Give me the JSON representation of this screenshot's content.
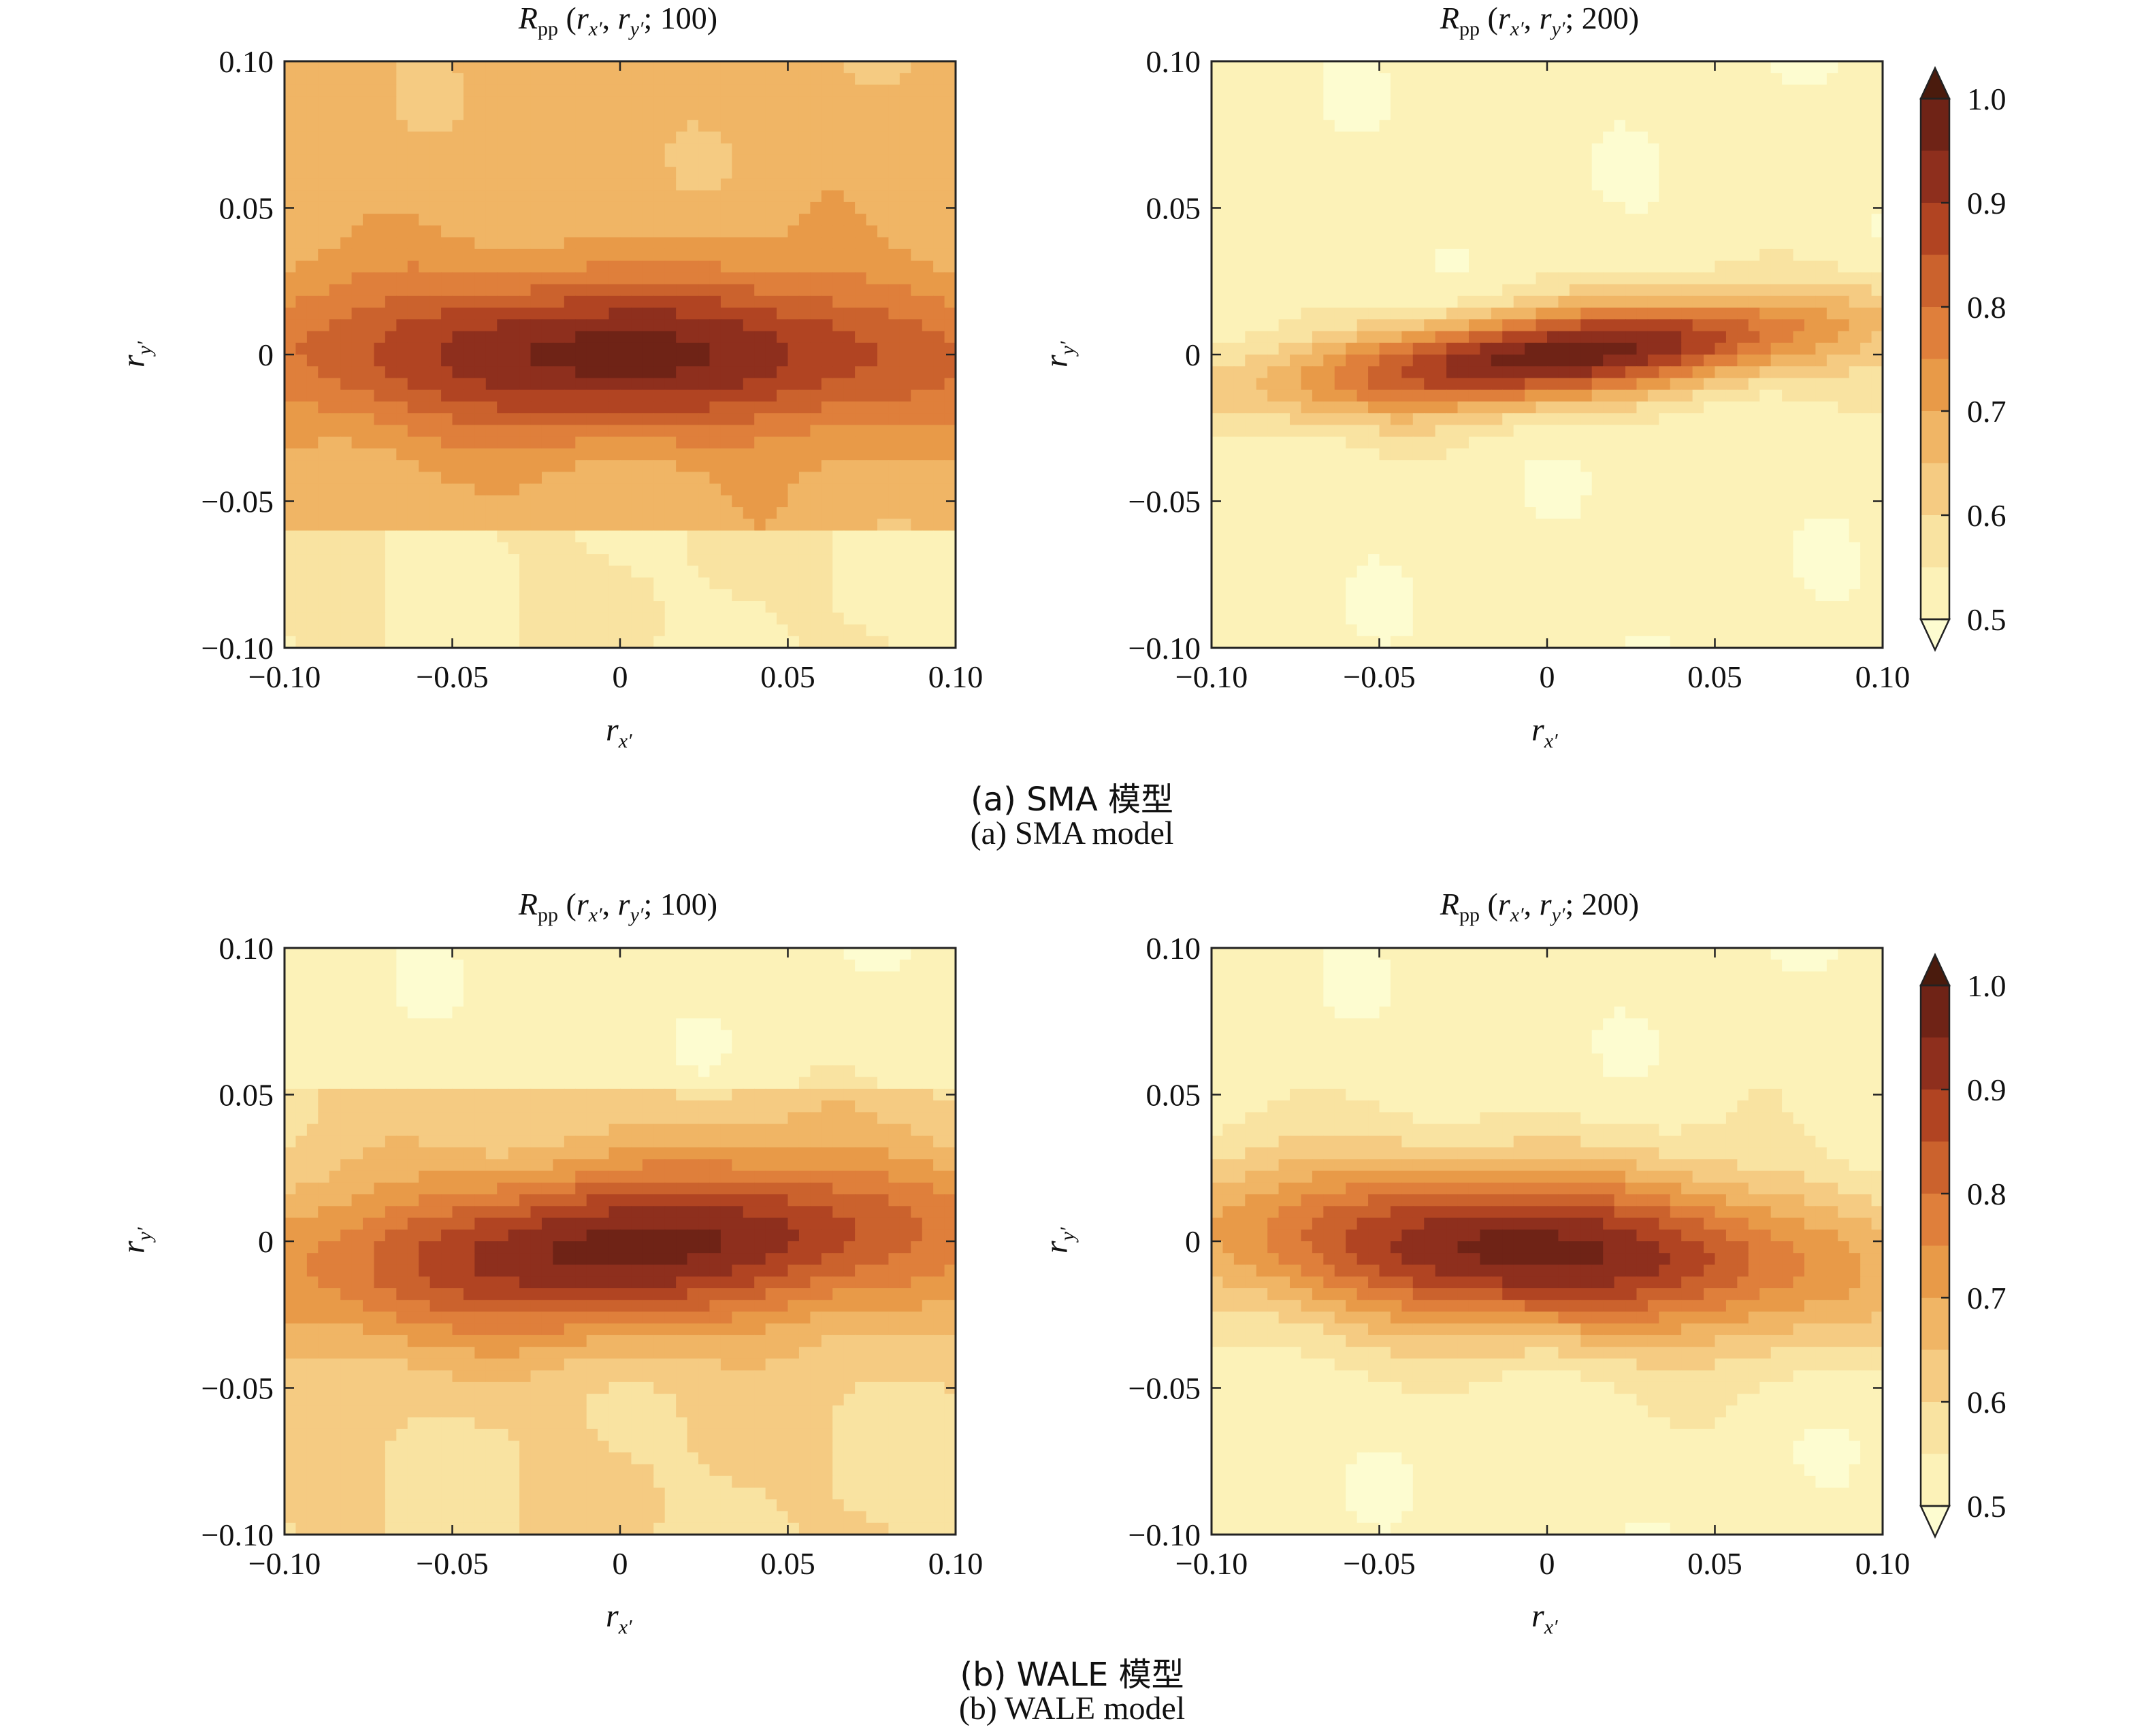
{
  "palette": [
    "#fdfcd0",
    "#fcf2b8",
    "#f9e3a1",
    "#f5cb82",
    "#f0b565",
    "#e89a48",
    "#df7f3b",
    "#cb622d",
    "#b14422",
    "#8e2f1d",
    "#6f2316",
    "#4a1b0d"
  ],
  "colorbar_ticks": [
    "1.0",
    "0.9",
    "0.8",
    "0.7",
    "0.6",
    "0.5"
  ],
  "captions": {
    "a_zh": "(a) SMA 模型",
    "a_en": "(a) SMA model",
    "b_zh": "(b) WALE 模型",
    "b_en": "(b) WALE model"
  },
  "chart_data": [
    {
      "type": "heatmap",
      "id": "sma-100",
      "title": "Rpp (rx′, ry′; 100)",
      "xlabel": "rx′",
      "ylabel": "ry′",
      "xlim": [
        -0.1,
        0.1
      ],
      "ylim": [
        -0.1,
        0.1
      ],
      "xticks": [
        "−0.10",
        "−0.05",
        "0",
        "0.05",
        "0.10"
      ],
      "yticks": [
        "0.10",
        "0.05",
        "0",
        "−0.05",
        "−0.10"
      ],
      "levels": [
        0.5,
        0.55,
        0.6,
        0.65,
        0.7,
        0.75,
        0.8,
        0.85,
        0.9,
        0.95,
        1.0
      ],
      "background": 0.67,
      "peak": {
        "x": 0.0,
        "y": 0.0,
        "value": 0.97,
        "sigma_x": 0.075,
        "sigma_y": 0.019,
        "tilt": 0.0
      },
      "low_region": {
        "y_below": -0.06,
        "value": 0.55
      }
    },
    {
      "type": "heatmap",
      "id": "sma-200",
      "title": "Rpp (rx′, ry′; 200)",
      "xlabel": "rx′",
      "ylabel": "ry′",
      "xlim": [
        -0.1,
        0.1
      ],
      "ylim": [
        -0.1,
        0.1
      ],
      "xticks": [
        "−0.10",
        "−0.05",
        "0",
        "0.05",
        "0.10"
      ],
      "yticks": [
        "0.10",
        "0.05",
        "0",
        "−0.05",
        "−0.10"
      ],
      "levels": [
        0.5,
        0.55,
        0.6,
        0.65,
        0.7,
        0.75,
        0.8,
        0.85,
        0.9,
        0.95,
        1.0
      ],
      "background": 0.52,
      "peak": {
        "x": 0.005,
        "y": 0.0,
        "value": 0.98,
        "sigma_x": 0.06,
        "sigma_y": 0.011,
        "tilt": 0.12
      },
      "colorbar": {
        "min": 0.5,
        "max": 1.0
      }
    },
    {
      "type": "heatmap",
      "id": "wale-100",
      "title": "Rpp (rx′, ry′; 100)",
      "xlabel": "rx′",
      "ylabel": "ry′",
      "xlim": [
        -0.1,
        0.1
      ],
      "ylim": [
        -0.1,
        0.1
      ],
      "xticks": [
        "−0.10",
        "−0.05",
        "0",
        "0.05",
        "0.10"
      ],
      "yticks": [
        "0.10",
        "0.05",
        "0",
        "−0.05",
        "−0.10"
      ],
      "levels": [
        0.5,
        0.55,
        0.6,
        0.65,
        0.7,
        0.75,
        0.8,
        0.85,
        0.9,
        0.95,
        1.0
      ],
      "background": 0.6,
      "peak": {
        "x": 0.005,
        "y": -0.002,
        "value": 0.97,
        "sigma_x": 0.075,
        "sigma_y": 0.02,
        "tilt": 0.08
      },
      "low_region": {
        "y_above": 0.05,
        "value": 0.52
      }
    },
    {
      "type": "heatmap",
      "id": "wale-200",
      "title": "Rpp (rx′, ry′; 200)",
      "xlabel": "rx′",
      "ylabel": "ry′",
      "xlim": [
        -0.1,
        0.1
      ],
      "ylim": [
        -0.1,
        0.1
      ],
      "xticks": [
        "−0.10",
        "−0.05",
        "0",
        "0.05",
        "0.10"
      ],
      "yticks": [
        "0.10",
        "0.05",
        "0",
        "−0.05",
        "−0.10"
      ],
      "levels": [
        0.5,
        0.55,
        0.6,
        0.65,
        0.7,
        0.75,
        0.8,
        0.85,
        0.9,
        0.95,
        1.0
      ],
      "background": 0.52,
      "peak": {
        "x": -0.005,
        "y": -0.003,
        "value": 0.97,
        "sigma_x": 0.07,
        "sigma_y": 0.02,
        "tilt": -0.06
      },
      "colorbar": {
        "min": 0.5,
        "max": 1.0
      }
    }
  ]
}
